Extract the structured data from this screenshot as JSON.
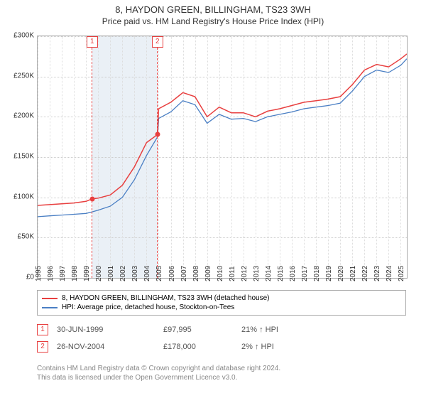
{
  "title": {
    "line1": "8, HAYDON GREEN, BILLINGHAM, TS23 3WH",
    "line2": "Price paid vs. HM Land Registry's House Price Index (HPI)"
  },
  "chart": {
    "type": "line",
    "background_color": "#ffffff",
    "grid_color": "#cccccc",
    "xlim": [
      1995,
      2025.5
    ],
    "ylim": [
      0,
      300000
    ],
    "ytick_step": 50000,
    "yticks": [
      "£0",
      "£50K",
      "£100K",
      "£150K",
      "£200K",
      "£250K",
      "£300K"
    ],
    "xticks": [
      1995,
      1996,
      1997,
      1998,
      1999,
      2000,
      2001,
      2002,
      2003,
      2004,
      2005,
      2006,
      2007,
      2008,
      2009,
      2010,
      2011,
      2012,
      2013,
      2014,
      2015,
      2016,
      2017,
      2018,
      2019,
      2020,
      2021,
      2022,
      2023,
      2024,
      2025
    ],
    "shade_band": {
      "x_start": 1999.5,
      "x_end": 2004.9,
      "fill": "#eaf0f6"
    },
    "series": [
      {
        "name": "8, HAYDON GREEN, BILLINGHAM, TS23 3WH (detached house)",
        "color": "#e83f3f",
        "line_width": 1.5,
        "points": [
          [
            1995,
            90000
          ],
          [
            1996,
            91000
          ],
          [
            1997,
            92000
          ],
          [
            1998,
            93000
          ],
          [
            1999,
            95000
          ],
          [
            1999.5,
            97995
          ],
          [
            2000,
            99000
          ],
          [
            2001,
            103000
          ],
          [
            2002,
            115000
          ],
          [
            2003,
            138000
          ],
          [
            2004,
            168000
          ],
          [
            2004.9,
            178000
          ],
          [
            2005,
            210000
          ],
          [
            2006,
            218000
          ],
          [
            2007,
            230000
          ],
          [
            2008,
            225000
          ],
          [
            2009,
            200000
          ],
          [
            2010,
            212000
          ],
          [
            2011,
            205000
          ],
          [
            2012,
            205000
          ],
          [
            2013,
            200000
          ],
          [
            2014,
            207000
          ],
          [
            2015,
            210000
          ],
          [
            2016,
            214000
          ],
          [
            2017,
            218000
          ],
          [
            2018,
            220000
          ],
          [
            2019,
            222000
          ],
          [
            2020,
            225000
          ],
          [
            2021,
            240000
          ],
          [
            2022,
            258000
          ],
          [
            2023,
            265000
          ],
          [
            2024,
            262000
          ],
          [
            2025,
            272000
          ],
          [
            2025.5,
            278000
          ]
        ]
      },
      {
        "name": "HPI: Average price, detached house, Stockton-on-Tees",
        "color": "#4a7fc4",
        "line_width": 1.3,
        "points": [
          [
            1995,
            76000
          ],
          [
            1996,
            77000
          ],
          [
            1997,
            78000
          ],
          [
            1998,
            79000
          ],
          [
            1999,
            80000
          ],
          [
            1999.5,
            82000
          ],
          [
            2000,
            84000
          ],
          [
            2001,
            89000
          ],
          [
            2002,
            100000
          ],
          [
            2003,
            122000
          ],
          [
            2004,
            152000
          ],
          [
            2004.9,
            175000
          ],
          [
            2005,
            198000
          ],
          [
            2006,
            206000
          ],
          [
            2007,
            220000
          ],
          [
            2008,
            215000
          ],
          [
            2009,
            192000
          ],
          [
            2010,
            203000
          ],
          [
            2011,
            197000
          ],
          [
            2012,
            198000
          ],
          [
            2013,
            194000
          ],
          [
            2014,
            200000
          ],
          [
            2015,
            203000
          ],
          [
            2016,
            206000
          ],
          [
            2017,
            210000
          ],
          [
            2018,
            212000
          ],
          [
            2019,
            214000
          ],
          [
            2020,
            217000
          ],
          [
            2021,
            232000
          ],
          [
            2022,
            250000
          ],
          [
            2023,
            258000
          ],
          [
            2024,
            255000
          ],
          [
            2025,
            264000
          ],
          [
            2025.5,
            272000
          ]
        ]
      }
    ],
    "markers": [
      {
        "label": "1",
        "x": 1999.5,
        "dot_color": "#e83f3f",
        "y": 97995
      },
      {
        "label": "2",
        "x": 2004.9,
        "dot_color": "#e83f3f",
        "y": 178000
      }
    ],
    "label_fontsize": 10,
    "title_fontsize": 13
  },
  "legend": {
    "items": [
      {
        "color": "#e83f3f",
        "label": "8, HAYDON GREEN, BILLINGHAM, TS23 3WH (detached house)"
      },
      {
        "color": "#4a7fc4",
        "label": "HPI: Average price, detached house, Stockton-on-Tees"
      }
    ]
  },
  "transactions": [
    {
      "marker": "1",
      "date": "30-JUN-1999",
      "price": "£97,995",
      "delta": "21% ↑ HPI"
    },
    {
      "marker": "2",
      "date": "26-NOV-2004",
      "price": "£178,000",
      "delta": "2% ↑ HPI"
    }
  ],
  "footer": {
    "line1": "Contains HM Land Registry data © Crown copyright and database right 2024.",
    "line2": "This data is licensed under the Open Government Licence v3.0."
  }
}
